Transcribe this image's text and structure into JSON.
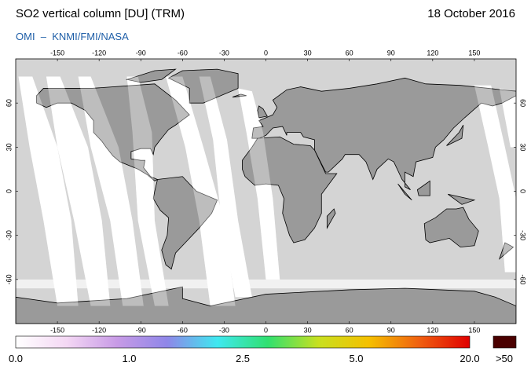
{
  "header": {
    "title": "SO2 vertical column [DU] (TRM)",
    "date": "18 October 2016",
    "source": "OMI  –  KNMI/FMI/NASA"
  },
  "map": {
    "lon_lim": [
      -180,
      180
    ],
    "lat_lim": [
      -90,
      90
    ],
    "lon_ticks": [
      -150,
      -120,
      -90,
      -60,
      -30,
      0,
      30,
      60,
      90,
      120,
      150
    ],
    "lat_ticks": [
      60,
      30,
      0,
      -30,
      -60
    ]
  },
  "colorbar": {
    "labels": [
      "0.0",
      "1.0",
      "2.5",
      "5.0",
      "20.0"
    ],
    "overflow_label": ">50",
    "colors": [
      "#ffffff",
      "#f4d8f4",
      "#c89be6",
      "#8f86e8",
      "#3fe8f0",
      "#30e070",
      "#c8e020",
      "#f5c000",
      "#f06010",
      "#e00000"
    ],
    "overflow_color": "#4a0000"
  }
}
